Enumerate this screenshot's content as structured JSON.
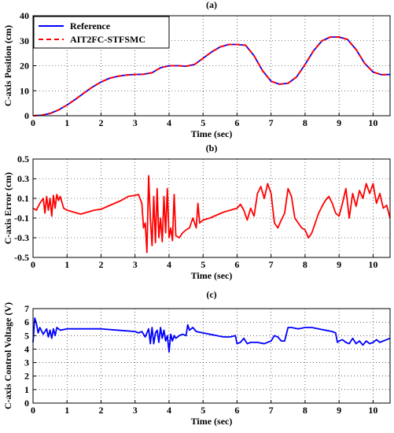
{
  "chart_data": [
    {
      "type": "line",
      "title": "(a)",
      "xlabel": "Time (sec)",
      "ylabel": "C-axis Position (cm)",
      "xlim": [
        0,
        10.5
      ],
      "ylim": [
        0,
        40
      ],
      "xticks": [
        0,
        1,
        2,
        3,
        4,
        5,
        6,
        7,
        8,
        9,
        10
      ],
      "yticks": [
        0,
        10,
        20,
        30,
        40
      ],
      "grid": true,
      "legend": "top-left",
      "series": [
        {
          "name": "Reference",
          "color": "#0000ff",
          "style": "solid",
          "x": [
            0,
            0.25,
            0.5,
            0.75,
            1.0,
            1.25,
            1.5,
            1.75,
            2.0,
            2.25,
            2.5,
            2.75,
            3.0,
            3.25,
            3.5,
            3.75,
            4.0,
            4.25,
            4.5,
            4.75,
            5.0,
            5.25,
            5.5,
            5.75,
            6.0,
            6.25,
            6.5,
            6.75,
            7.0,
            7.25,
            7.5,
            7.75,
            8.0,
            8.25,
            8.5,
            8.75,
            9.0,
            9.25,
            9.5,
            9.75,
            10.0,
            10.25,
            10.5
          ],
          "y": [
            0,
            0.2,
            0.9,
            2.3,
            4.3,
            6.6,
            9.1,
            11.5,
            13.5,
            15.0,
            15.8,
            16.3,
            16.5,
            16.6,
            17.2,
            19.2,
            20.0,
            20.0,
            19.8,
            20.5,
            23.0,
            25.5,
            27.5,
            28.5,
            28.5,
            28.2,
            24.0,
            18.0,
            13.8,
            12.6,
            13.0,
            15.5,
            20.5,
            26.0,
            30.0,
            31.5,
            31.5,
            30.5,
            26.5,
            21.0,
            17.5,
            16.4,
            16.5
          ]
        },
        {
          "name": "AIT2FC-STFSMC",
          "color": "#ff0000",
          "style": "dashed",
          "x": [
            0,
            0.25,
            0.5,
            0.75,
            1.0,
            1.25,
            1.5,
            1.75,
            2.0,
            2.25,
            2.5,
            2.75,
            3.0,
            3.25,
            3.5,
            3.75,
            4.0,
            4.25,
            4.5,
            4.75,
            5.0,
            5.25,
            5.5,
            5.75,
            6.0,
            6.25,
            6.5,
            6.75,
            7.0,
            7.25,
            7.5,
            7.75,
            8.0,
            8.25,
            8.5,
            8.75,
            9.0,
            9.25,
            9.5,
            9.75,
            10.0,
            10.25,
            10.5
          ],
          "y": [
            0,
            0.2,
            0.9,
            2.3,
            4.3,
            6.6,
            9.1,
            11.5,
            13.5,
            15.0,
            15.8,
            16.3,
            16.5,
            16.6,
            17.2,
            19.2,
            20.0,
            20.0,
            19.8,
            20.5,
            23.0,
            25.5,
            27.5,
            28.5,
            28.5,
            28.2,
            24.0,
            18.0,
            13.8,
            12.6,
            13.0,
            15.5,
            20.5,
            26.0,
            30.0,
            31.5,
            31.5,
            30.5,
            26.5,
            21.0,
            17.5,
            16.4,
            16.5
          ]
        }
      ]
    },
    {
      "type": "line",
      "title": "(b)",
      "xlabel": "Time (sec)",
      "ylabel": "C-axis Error (cm)",
      "xlim": [
        0,
        10.5
      ],
      "ylim": [
        -0.5,
        0.5
      ],
      "xticks": [
        0,
        1,
        2,
        3,
        4,
        5,
        6,
        7,
        8,
        9,
        10
      ],
      "yticks": [
        -0.5,
        -0.3,
        -0.1,
        0.1,
        0.3,
        0.5
      ],
      "ytick_labels": [
        "-0.5",
        "-0.3",
        "-0.1",
        "0.1",
        "0.3",
        "0.5"
      ],
      "grid": true,
      "series": [
        {
          "color": "#ff0000",
          "style": "solid",
          "x": [
            0,
            0.1,
            0.2,
            0.3,
            0.35,
            0.4,
            0.45,
            0.5,
            0.55,
            0.6,
            0.65,
            0.7,
            0.75,
            0.8,
            0.9,
            1.0,
            1.2,
            1.4,
            1.6,
            1.8,
            2.0,
            2.2,
            2.4,
            2.6,
            2.8,
            3.0,
            3.1,
            3.2,
            3.25,
            3.3,
            3.35,
            3.4,
            3.45,
            3.5,
            3.55,
            3.6,
            3.65,
            3.7,
            3.75,
            3.8,
            3.85,
            3.9,
            3.95,
            4.0,
            4.05,
            4.1,
            4.15,
            4.2,
            4.3,
            4.4,
            4.5,
            4.6,
            4.7,
            4.8,
            4.85,
            4.9,
            5.0,
            5.2,
            5.4,
            5.6,
            5.8,
            6.0,
            6.1,
            6.2,
            6.3,
            6.4,
            6.5,
            6.6,
            6.7,
            6.8,
            6.9,
            7.0,
            7.1,
            7.2,
            7.3,
            7.4,
            7.5,
            7.6,
            7.7,
            7.8,
            7.9,
            8.0,
            8.1,
            8.2,
            8.3,
            8.4,
            8.5,
            8.6,
            8.7,
            8.8,
            8.9,
            9.0,
            9.1,
            9.2,
            9.3,
            9.4,
            9.5,
            9.6,
            9.7,
            9.8,
            9.9,
            10.0,
            10.1,
            10.2,
            10.3,
            10.4,
            10.5
          ],
          "y": [
            0.0,
            -0.02,
            0.05,
            0.1,
            -0.05,
            0.12,
            -0.02,
            0.1,
            -0.08,
            0.13,
            0.0,
            0.14,
            0.08,
            0.12,
            0.0,
            -0.02,
            -0.04,
            -0.06,
            -0.04,
            -0.02,
            -0.01,
            0.02,
            0.05,
            0.08,
            0.12,
            0.13,
            0.14,
            0.05,
            -0.2,
            -0.15,
            -0.45,
            0.33,
            -0.1,
            -0.38,
            0.12,
            -0.35,
            0.2,
            -0.3,
            -0.1,
            -0.34,
            0.12,
            -0.25,
            0.2,
            -0.3,
            -0.2,
            -0.33,
            0.14,
            -0.28,
            -0.3,
            -0.25,
            -0.22,
            -0.2,
            -0.1,
            -0.2,
            0.05,
            -0.15,
            -0.12,
            -0.1,
            -0.07,
            -0.04,
            -0.02,
            0.0,
            0.04,
            -0.02,
            -0.12,
            0.0,
            -0.08,
            0.15,
            0.22,
            0.1,
            0.25,
            0.15,
            -0.15,
            -0.2,
            -0.12,
            -0.05,
            0.2,
            0.12,
            -0.1,
            -0.15,
            -0.2,
            -0.22,
            -0.3,
            -0.25,
            -0.15,
            -0.05,
            0.02,
            0.08,
            0.12,
            0.05,
            -0.05,
            -0.08,
            0.05,
            0.2,
            -0.1,
            0.15,
            0.02,
            0.18,
            0.1,
            0.25,
            0.15,
            0.25,
            0.05,
            0.15,
            0.0,
            0.03,
            -0.1
          ]
        }
      ]
    },
    {
      "type": "line",
      "title": "(c)",
      "xlabel": "Time (sec)",
      "ylabel": "C-axis Control Voltage (V)",
      "xlim": [
        0,
        10.5
      ],
      "ylim": [
        0,
        7
      ],
      "xticks": [
        0,
        1,
        2,
        3,
        4,
        5,
        6,
        7,
        8,
        9,
        10
      ],
      "yticks": [
        0,
        1,
        2,
        3,
        4,
        5,
        6,
        7
      ],
      "grid": true,
      "series": [
        {
          "color": "#0000ff",
          "style": "solid",
          "x": [
            0,
            0.05,
            0.1,
            0.15,
            0.2,
            0.3,
            0.4,
            0.45,
            0.5,
            0.55,
            0.6,
            0.65,
            0.7,
            0.8,
            1.0,
            1.5,
            2.0,
            2.5,
            3.0,
            3.1,
            3.2,
            3.3,
            3.4,
            3.45,
            3.5,
            3.55,
            3.6,
            3.65,
            3.7,
            3.75,
            3.8,
            3.85,
            3.9,
            3.95,
            4.0,
            4.05,
            4.1,
            4.15,
            4.2,
            4.3,
            4.4,
            4.5,
            4.55,
            4.6,
            4.7,
            4.8,
            5.0,
            5.2,
            5.4,
            5.6,
            5.8,
            5.95,
            6.0,
            6.1,
            6.2,
            6.3,
            6.4,
            6.6,
            6.8,
            7.0,
            7.1,
            7.2,
            7.3,
            7.4,
            7.5,
            7.6,
            7.8,
            8.0,
            8.2,
            8.4,
            8.6,
            8.8,
            8.9,
            8.95,
            9.0,
            9.1,
            9.2,
            9.3,
            9.4,
            9.5,
            9.6,
            9.7,
            9.8,
            9.9,
            10.0,
            10.1,
            10.2,
            10.3,
            10.4,
            10.5
          ],
          "y": [
            4.5,
            6.3,
            5.9,
            5.2,
            5.6,
            5.1,
            5.5,
            4.9,
            5.4,
            4.8,
            5.5,
            5.0,
            5.6,
            5.4,
            5.5,
            5.5,
            5.5,
            5.4,
            5.3,
            5.2,
            5.3,
            4.9,
            5.5,
            4.4,
            5.6,
            4.4,
            5.2,
            5.4,
            4.5,
            5.6,
            4.8,
            5.4,
            4.6,
            5.0,
            3.8,
            5.1,
            4.6,
            5.0,
            4.8,
            5.0,
            5.1,
            5.0,
            5.8,
            5.4,
            5.6,
            5.3,
            5.2,
            5.1,
            5.0,
            4.9,
            4.9,
            5.0,
            4.4,
            4.5,
            4.8,
            4.4,
            4.5,
            4.5,
            4.4,
            4.6,
            5.0,
            4.9,
            4.6,
            4.6,
            5.6,
            5.6,
            5.5,
            5.6,
            5.6,
            5.5,
            5.4,
            5.3,
            5.2,
            4.5,
            4.6,
            4.7,
            4.5,
            4.4,
            4.8,
            4.4,
            4.6,
            4.3,
            4.6,
            4.4,
            4.5,
            4.7,
            4.5,
            4.6,
            4.7,
            4.8
          ]
        }
      ]
    }
  ]
}
